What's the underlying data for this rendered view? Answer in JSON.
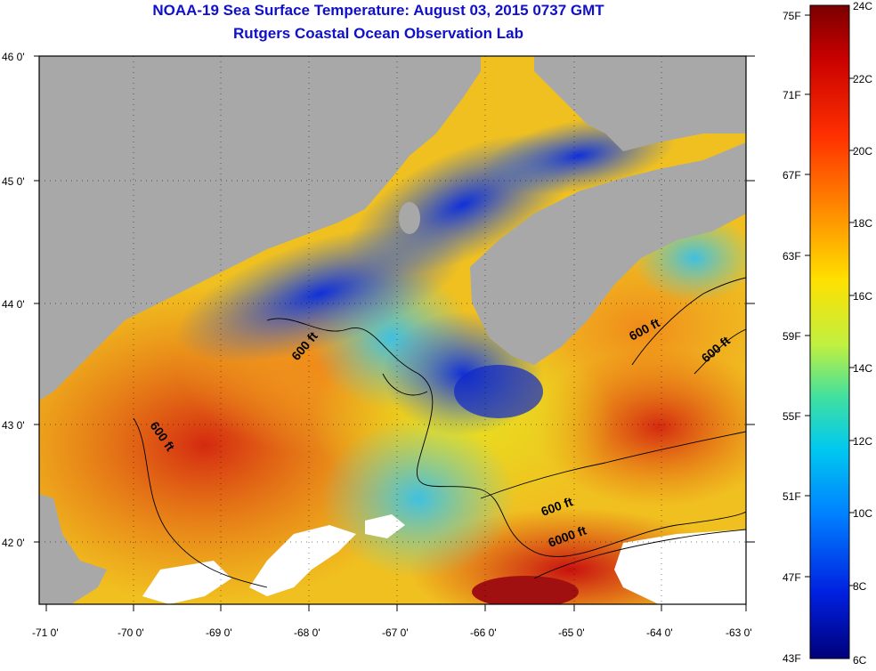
{
  "header": {
    "title_line1": "NOAA-19 Sea Surface Temperature:  August 03, 2015 0737 GMT",
    "title_line2": "Rutgers Coastal Ocean Observation Lab"
  },
  "map": {
    "lat_labels": [
      "46 0'",
      "45 0'",
      "44 0'",
      "43 0'",
      "42 0'"
    ],
    "lon_labels": [
      "-71 0'",
      "-70 0'",
      "-69 0'",
      "-68 0'",
      "-67 0'",
      "-66 0'",
      "-65 0'",
      "-64 0'",
      "-63 0'"
    ],
    "contour_labels": [
      "600 ft",
      "600 ft",
      "600 ft",
      "600 ft",
      "600 ft",
      "6000 ft"
    ]
  },
  "colorbar": {
    "fahrenheit_labels": [
      "75F",
      "71F",
      "67F",
      "63F",
      "59F",
      "55F",
      "51F",
      "47F",
      "43F"
    ],
    "celsius_labels": [
      "24C",
      "22C",
      "20C",
      "18C",
      "16C",
      "14C",
      "12C",
      "10C",
      "8C",
      "6C"
    ]
  },
  "colors": {
    "land": "#a8a8a8",
    "title": "#1010c8",
    "cloud": "#ffffff"
  }
}
